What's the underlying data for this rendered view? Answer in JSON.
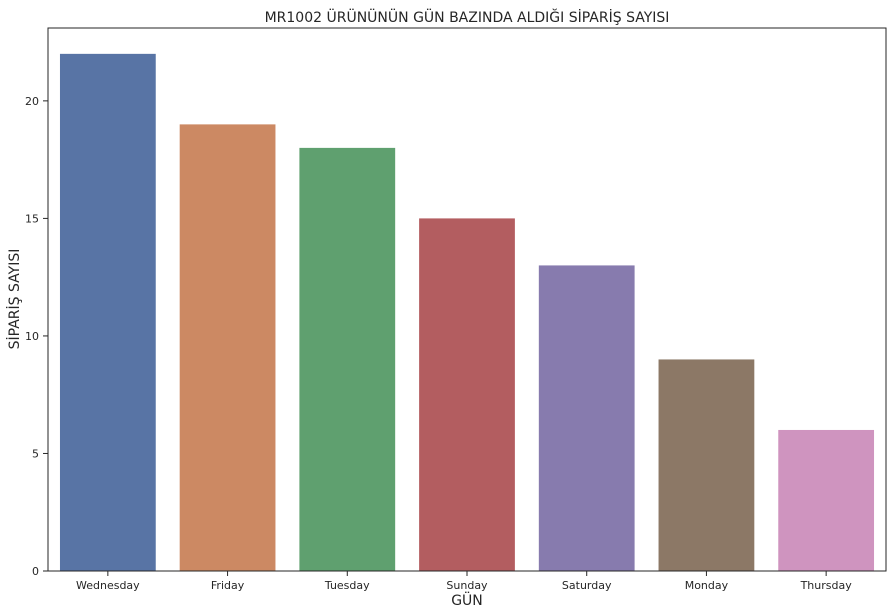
{
  "chart_data": {
    "type": "bar",
    "title": "MR1002 ÜRÜNÜNÜN GÜN BAZINDA ALDIĞI SİPARİŞ SAYISI",
    "xlabel": "GÜN",
    "ylabel": "SİPARİŞ SAYISI",
    "categories": [
      "Wednesday",
      "Friday",
      "Tuesday",
      "Sunday",
      "Saturday",
      "Monday",
      "Thursday"
    ],
    "values": [
      22,
      19,
      18,
      15,
      13,
      9,
      6
    ],
    "colors": [
      "#5874a5",
      "#cc8963",
      "#5fa06f",
      "#b35d60",
      "#877bae",
      "#8c7866",
      "#cf94bf"
    ],
    "ylim": [
      0,
      23.1
    ],
    "yticks": [
      0,
      5,
      10,
      15,
      20
    ],
    "grid": false,
    "legend": "none"
  }
}
